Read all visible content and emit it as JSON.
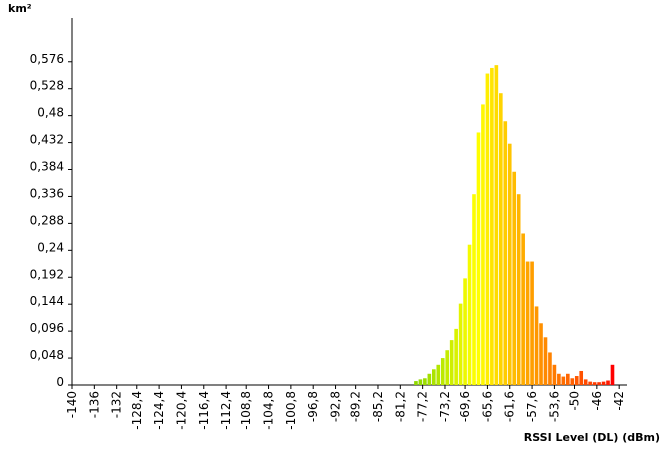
{
  "chart_data": {
    "type": "bar",
    "y_label": "km²",
    "x_label": "RSSI Level (DL) (dBm)",
    "x": [
      -78.4,
      -77.6,
      -76.8,
      -76,
      -75.2,
      -74.4,
      -73.6,
      -72.8,
      -72,
      -71.2,
      -70.4,
      -69.6,
      -68.8,
      -68,
      -67.2,
      -66.4,
      -65.6,
      -64.8,
      -64,
      -63.2,
      -62.4,
      -61.6,
      -60.8,
      -60,
      -59.2,
      -58.4,
      -57.6,
      -56.8,
      -56,
      -55.2,
      -54.4,
      -53.6,
      -52.8,
      -52,
      -51.2,
      -50.4,
      -49.6,
      -48.8,
      -48,
      -47.2,
      -46.4,
      -45.6,
      -44.8,
      -44,
      -43.2
    ],
    "values": [
      0.007,
      0.01,
      0.012,
      0.02,
      0.028,
      0.036,
      0.048,
      0.062,
      0.08,
      0.1,
      0.145,
      0.19,
      0.25,
      0.34,
      0.45,
      0.5,
      0.555,
      0.565,
      0.57,
      0.52,
      0.47,
      0.43,
      0.38,
      0.34,
      0.27,
      0.22,
      0.22,
      0.14,
      0.11,
      0.085,
      0.058,
      0.036,
      0.02,
      0.015,
      0.02,
      0.012,
      0.016,
      0.025,
      0.01,
      0.006,
      0.005,
      0.005,
      0.006,
      0.008,
      0.036
    ],
    "colors": [
      "#8fd800",
      "#95da00",
      "#9cdd00",
      "#a3e000",
      "#abe300",
      "#b3e600",
      "#bce900",
      "#c5ec00",
      "#cfef00",
      "#d9f200",
      "#e3f500",
      "#edf800",
      "#f5fb00",
      "#fbfd00",
      "#ffff00",
      "#fff700",
      "#ffee00",
      "#ffe500",
      "#ffdc00",
      "#ffd400",
      "#ffcc00",
      "#ffc400",
      "#ffbc00",
      "#ffb400",
      "#ffac00",
      "#ffa500",
      "#ff9e00",
      "#ff9700",
      "#ff9000",
      "#ff8900",
      "#ff8200",
      "#ff7b00",
      "#ff7400",
      "#ff6d00",
      "#ff6600",
      "#ff5f00",
      "#ff5800",
      "#ff5100",
      "#ff4a00",
      "#ff4300",
      "#ff3c00",
      "#ff3300",
      "#ff2800",
      "#ff1a00",
      "#ff0000"
    ],
    "bar_width": 0.65,
    "xlim": [
      -140,
      -40.6
    ],
    "ylim": [
      0,
      0.654
    ],
    "xticks": [
      -140,
      -136,
      -132,
      {
        "value": -128.4,
        "label": "-128,4"
      },
      {
        "value": -124.4,
        "label": "-124,4"
      },
      {
        "value": -120.4,
        "label": "-120,4"
      },
      {
        "value": -116.4,
        "label": "-116,4"
      },
      {
        "value": -112.4,
        "label": "-112,4"
      },
      {
        "value": -108.8,
        "label": "-108,8"
      },
      {
        "value": -104.8,
        "label": "-104,8"
      },
      {
        "value": -100.8,
        "label": "-100,8"
      },
      {
        "value": -96.8,
        "label": "-96,8"
      },
      {
        "value": -92.8,
        "label": "-92,8"
      },
      {
        "value": -89.2,
        "label": "-89,2"
      },
      {
        "value": -85.2,
        "label": "-85,2"
      },
      {
        "value": -81.2,
        "label": "-81,2"
      },
      {
        "value": -77.2,
        "label": "-77,2"
      },
      {
        "value": -73.2,
        "label": "-73,2"
      },
      {
        "value": -69.6,
        "label": "-69,6"
      },
      {
        "value": -65.6,
        "label": "-65,6"
      },
      {
        "value": -61.6,
        "label": "-61,6"
      },
      {
        "value": -57.6,
        "label": "-57,6"
      },
      {
        "value": -53.6,
        "label": "-53,6"
      },
      -50,
      -46,
      -42
    ],
    "yticks": [
      0,
      {
        "value": 0.048,
        "label": "0,048"
      },
      {
        "value": 0.096,
        "label": "0,096"
      },
      {
        "value": 0.144,
        "label": "0,144"
      },
      {
        "value": 0.192,
        "label": "0,192"
      },
      {
        "value": 0.24,
        "label": "0,24"
      },
      {
        "value": 0.288,
        "label": "0,288"
      },
      {
        "value": 0.336,
        "label": "0,336"
      },
      {
        "value": 0.384,
        "label": "0,384"
      },
      {
        "value": 0.432,
        "label": "0,432"
      },
      {
        "value": 0.48,
        "label": "0,48"
      },
      {
        "value": 0.528,
        "label": "0,528"
      },
      {
        "value": 0.576,
        "label": "0,576"
      }
    ]
  }
}
